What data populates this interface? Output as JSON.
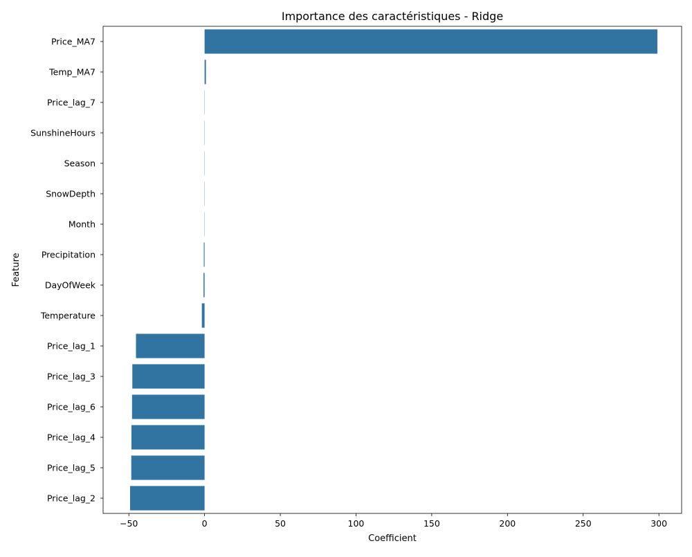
{
  "chart_data": {
    "type": "bar",
    "orientation": "horizontal",
    "title": "Importance des caractéristiques - Ridge",
    "xlabel": "Coefficient",
    "ylabel": "Feature",
    "categories": [
      "Price_MA7",
      "Temp_MA7",
      "Price_lag_7",
      "SunshineHours",
      "Season",
      "SnowDepth",
      "Month",
      "Precipitation",
      "DayOfWeek",
      "Temperature",
      "Price_lag_1",
      "Price_lag_3",
      "Price_lag_6",
      "Price_lag_4",
      "Price_lag_5",
      "Price_lag_2"
    ],
    "values": [
      299.0,
      0.9,
      0.05,
      0.03,
      0.02,
      -0.02,
      -0.03,
      -0.5,
      -0.7,
      -1.8,
      -45.3,
      -47.7,
      -47.9,
      -48.3,
      -48.4,
      -49.2
    ],
    "xlim": [
      -67,
      315
    ],
    "xticks": [
      -50,
      0,
      50,
      100,
      150,
      200,
      250,
      300
    ],
    "xtick_labels": [
      "−50",
      "0",
      "50",
      "100",
      "150",
      "200",
      "250",
      "300"
    ],
    "bar_color": "#3274a1",
    "grid": false,
    "legend": "none"
  }
}
